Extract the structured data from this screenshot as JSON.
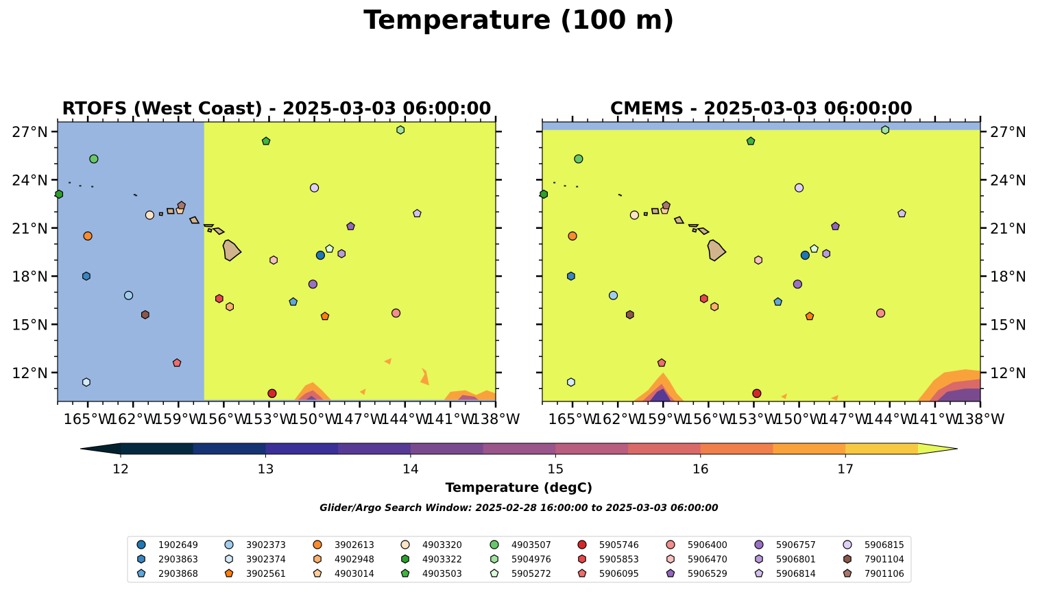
{
  "chart_data": {
    "type": "map",
    "title": "Temperature (100 m)",
    "subtitle": "Glider/Argo Search Window: 2025-02-28 16:00:00 to 2025-03-03 06:00:00",
    "panels": [
      {
        "title": "RTOFS (West Coast) - 2025-03-03 06:00:00",
        "missing_west_of_lon": -157.3
      },
      {
        "title": "CMEMS - 2025-03-03 06:00:00",
        "missing_north_of_lat": 27.1
      }
    ],
    "extent": {
      "lon": [
        -167.0,
        -138.0
      ],
      "lat": [
        10.2,
        27.6
      ]
    },
    "x_ticks": [
      {
        "value": -165,
        "label": "165°W"
      },
      {
        "value": -162,
        "label": "162°W"
      },
      {
        "value": -159,
        "label": "159°W"
      },
      {
        "value": -156,
        "label": "156°W"
      },
      {
        "value": -153,
        "label": "153°W"
      },
      {
        "value": -150,
        "label": "150°W"
      },
      {
        "value": -147,
        "label": "147°W"
      },
      {
        "value": -144,
        "label": "144°W"
      },
      {
        "value": -141,
        "label": "141°W"
      },
      {
        "value": -138,
        "label": "138°W"
      }
    ],
    "y_ticks": [
      {
        "value": 12,
        "label": "12°N"
      },
      {
        "value": 15,
        "label": "15°N"
      },
      {
        "value": 18,
        "label": "18°N"
      },
      {
        "value": 21,
        "label": "21°N"
      },
      {
        "value": 24,
        "label": "24°N"
      },
      {
        "value": 27,
        "label": "27°N"
      }
    ],
    "colorbar": {
      "label": "Temperature (degC)",
      "levels": [
        12.0,
        12.5,
        13.0,
        13.5,
        14.0,
        14.5,
        15.0,
        15.5,
        16.0,
        16.5,
        17.0,
        17.5
      ],
      "colors": [
        "#052a3f",
        "#163374",
        "#3b2f98",
        "#573a95",
        "#7a4a8e",
        "#9a558a",
        "#b95e7e",
        "#d96a68",
        "#f07f4c",
        "#f9a23c",
        "#f7c943"
      ],
      "under_color": "#03202e",
      "over_color": "#e6f85a",
      "ticks": [
        {
          "value": 12,
          "label": "12"
        },
        {
          "value": 13,
          "label": "13"
        },
        {
          "value": 14,
          "label": "14"
        },
        {
          "value": 15,
          "label": "15"
        },
        {
          "value": 16,
          "label": "16"
        },
        {
          "value": 17,
          "label": "17"
        }
      ]
    },
    "missing_color": "#98b6e0",
    "land_color": "#d2b48c",
    "floats": [
      {
        "id": "1902649",
        "marker": "circle",
        "color": "#1f77b4",
        "lon": -149.6,
        "lat": 19.3
      },
      {
        "id": "2903863",
        "marker": "hexagon",
        "color": "#3a86c0",
        "lon": -165.1,
        "lat": 18.0
      },
      {
        "id": "2903868",
        "marker": "pentagon",
        "color": "#5ea7dc",
        "lon": -151.4,
        "lat": 16.4
      },
      {
        "id": "3902373",
        "marker": "circle",
        "color": "#9fcdee",
        "lon": -162.3,
        "lat": 16.8
      },
      {
        "id": "3902374",
        "marker": "hexagon",
        "color": "#d4ebfa",
        "lon": -165.1,
        "lat": 11.4
      },
      {
        "id": "3902561",
        "marker": "pentagon",
        "color": "#ff7f0e",
        "lon": -149.3,
        "lat": 15.5
      },
      {
        "id": "3902613",
        "marker": "circle",
        "color": "#f98c2e",
        "lon": -165.0,
        "lat": 20.5
      },
      {
        "id": "4902948",
        "marker": "hexagon",
        "color": "#fcb16c",
        "lon": -155.6,
        "lat": 16.1
      },
      {
        "id": "4903014",
        "marker": "pentagon",
        "color": "#fdcf9e",
        "lon": -158.9,
        "lat": 22.1
      },
      {
        "id": "4903320",
        "marker": "circle",
        "color": "#fde3c6",
        "lon": -160.9,
        "lat": 21.8
      },
      {
        "id": "4903322",
        "marker": "hexagon",
        "color": "#2ca02c",
        "lon": -166.9,
        "lat": 23.1
      },
      {
        "id": "4903503",
        "marker": "pentagon",
        "color": "#41b541",
        "lon": -153.2,
        "lat": 26.4
      },
      {
        "id": "4903507",
        "marker": "circle",
        "color": "#67c867",
        "lon": -164.6,
        "lat": 25.3
      },
      {
        "id": "5904976",
        "marker": "hexagon",
        "color": "#a3e3a0",
        "lon": -144.3,
        "lat": 27.1
      },
      {
        "id": "5905272",
        "marker": "pentagon",
        "color": "#dcfadc",
        "lon": -149.0,
        "lat": 19.7
      },
      {
        "id": "5905746",
        "marker": "circle",
        "color": "#d62728",
        "lon": -152.8,
        "lat": 10.7
      },
      {
        "id": "5905853",
        "marker": "hexagon",
        "color": "#e8474a",
        "lon": -156.3,
        "lat": 16.6
      },
      {
        "id": "5906095",
        "marker": "pentagon",
        "color": "#ee6d6e",
        "lon": -159.1,
        "lat": 12.6
      },
      {
        "id": "5906400",
        "marker": "circle",
        "color": "#f28e8c",
        "lon": -144.6,
        "lat": 15.7
      },
      {
        "id": "5906470",
        "marker": "hexagon",
        "color": "#f9c0c0",
        "lon": -152.7,
        "lat": 19.0
      },
      {
        "id": "5906529",
        "marker": "pentagon",
        "color": "#9467bd",
        "lon": -147.6,
        "lat": 21.1
      },
      {
        "id": "5906757",
        "marker": "circle",
        "color": "#9a70c4",
        "lon": -150.1,
        "lat": 17.5
      },
      {
        "id": "5906801",
        "marker": "hexagon",
        "color": "#b89ada",
        "lon": -148.2,
        "lat": 19.4
      },
      {
        "id": "5906814",
        "marker": "pentagon",
        "color": "#d3c0ee",
        "lon": -143.2,
        "lat": 21.9
      },
      {
        "id": "5906815",
        "marker": "circle",
        "color": "#e0d0f8",
        "lon": -150.0,
        "lat": 23.5
      },
      {
        "id": "7901104",
        "marker": "hexagon",
        "color": "#8c564b",
        "lon": -161.2,
        "lat": 15.6
      },
      {
        "id": "7901106",
        "marker": "pentagon",
        "color": "#a7766d",
        "lon": -158.8,
        "lat": 22.4
      }
    ]
  }
}
